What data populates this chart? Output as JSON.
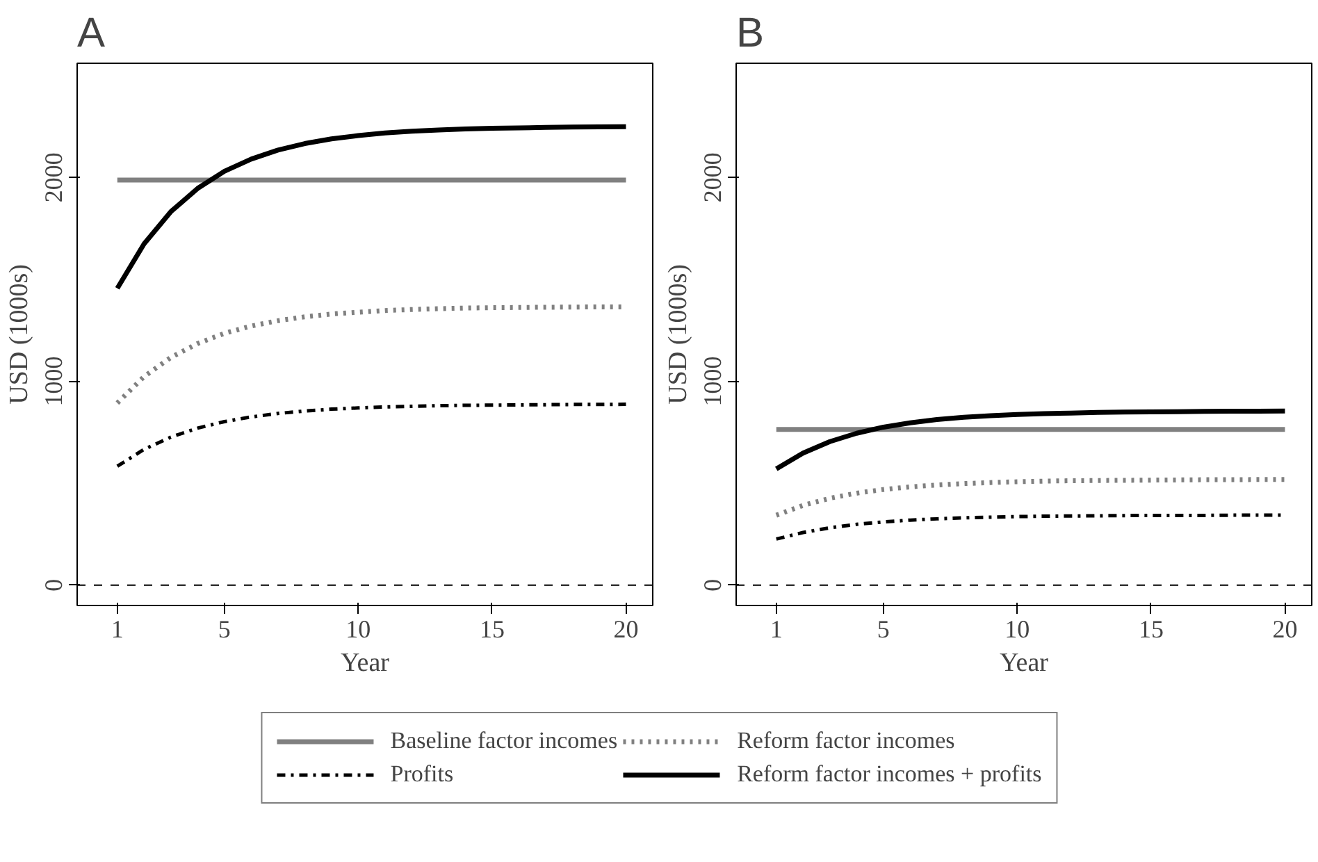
{
  "chart_data": [
    {
      "type": "line",
      "title": "A",
      "xlabel": "Year",
      "ylabel": "USD (1000s)",
      "x": [
        1,
        2,
        3,
        4,
        5,
        6,
        7,
        8,
        9,
        10,
        11,
        12,
        13,
        14,
        15,
        16,
        17,
        18,
        19,
        20
      ],
      "xlim": [
        -0.5,
        21
      ],
      "xticks": [
        1,
        5,
        10,
        15,
        20
      ],
      "ylim": [
        -100,
        2560
      ],
      "yticks": [
        0,
        1000,
        2000
      ],
      "grid": false,
      "legend": "bottom",
      "ref_lines": [
        {
          "axis": "y",
          "value": 0,
          "color": "#000000",
          "line_style": "dashed"
        }
      ],
      "series": [
        {
          "name": "Baseline factor incomes",
          "color": "#808080",
          "line_style": "solid",
          "values": [
            1987,
            1987,
            1987,
            1987,
            1987,
            1987,
            1987,
            1987,
            1987,
            1987,
            1987,
            1987,
            1987,
            1987,
            1987,
            1987,
            1987,
            1987,
            1987,
            1987
          ]
        },
        {
          "name": "Reform factor incomes",
          "color": "#808080",
          "line_style": "dotted",
          "values": [
            893,
            1023,
            1117,
            1185,
            1235,
            1271,
            1297,
            1316,
            1330,
            1339,
            1347,
            1352,
            1356,
            1359,
            1361,
            1362,
            1363,
            1364,
            1365,
            1365
          ]
        },
        {
          "name": "Profits",
          "color": "#000000",
          "line_style": "dashdot",
          "values": [
            583,
            666,
            726,
            770,
            802,
            825,
            842,
            854,
            863,
            869,
            874,
            877,
            880,
            882,
            883,
            884,
            885,
            886,
            886,
            887
          ]
        },
        {
          "name": "Reform factor incomes + profits",
          "color": "#000000",
          "line_style": "solid",
          "values": [
            1456,
            1674,
            1832,
            1946,
            2030,
            2090,
            2134,
            2166,
            2189,
            2205,
            2218,
            2227,
            2233,
            2238,
            2241,
            2243,
            2245,
            2247,
            2248,
            2249
          ]
        }
      ]
    },
    {
      "type": "line",
      "title": "B",
      "xlabel": "Year",
      "ylabel": "USD (1000s)",
      "x": [
        1,
        2,
        3,
        4,
        5,
        6,
        7,
        8,
        9,
        10,
        11,
        12,
        13,
        14,
        15,
        16,
        17,
        18,
        19,
        20
      ],
      "xlim": [
        -0.5,
        21
      ],
      "xticks": [
        1,
        5,
        10,
        15,
        20
      ],
      "ylim": [
        -100,
        2560
      ],
      "yticks": [
        0,
        1000,
        2000
      ],
      "grid": false,
      "ref_lines": [
        {
          "axis": "y",
          "value": 0,
          "color": "#000000",
          "line_style": "dashed"
        }
      ],
      "series": [
        {
          "color": "#808080",
          "line_style": "solid",
          "values": [
            764,
            764,
            764,
            764,
            764,
            764,
            764,
            764,
            764,
            764,
            764,
            764,
            764,
            764,
            764,
            764,
            764,
            764,
            764,
            764
          ]
        },
        {
          "color": "#808080",
          "line_style": "dotted",
          "values": [
            343,
            391,
            426,
            451,
            469,
            482,
            491,
            498,
            503,
            507,
            510,
            512,
            513,
            514,
            515,
            516,
            517,
            517,
            518,
            518
          ]
        },
        {
          "color": "#000000",
          "line_style": "dashdot",
          "values": [
            226,
            258,
            281,
            298,
            310,
            319,
            325,
            330,
            333,
            336,
            338,
            339,
            340,
            341,
            342,
            342,
            342,
            343,
            343,
            343
          ]
        },
        {
          "color": "#000000",
          "line_style": "solid",
          "values": [
            570,
            648,
            704,
            745,
            775,
            796,
            812,
            823,
            831,
            837,
            841,
            844,
            847,
            849,
            850,
            851,
            852,
            853,
            853,
            854
          ]
        }
      ]
    }
  ]
}
